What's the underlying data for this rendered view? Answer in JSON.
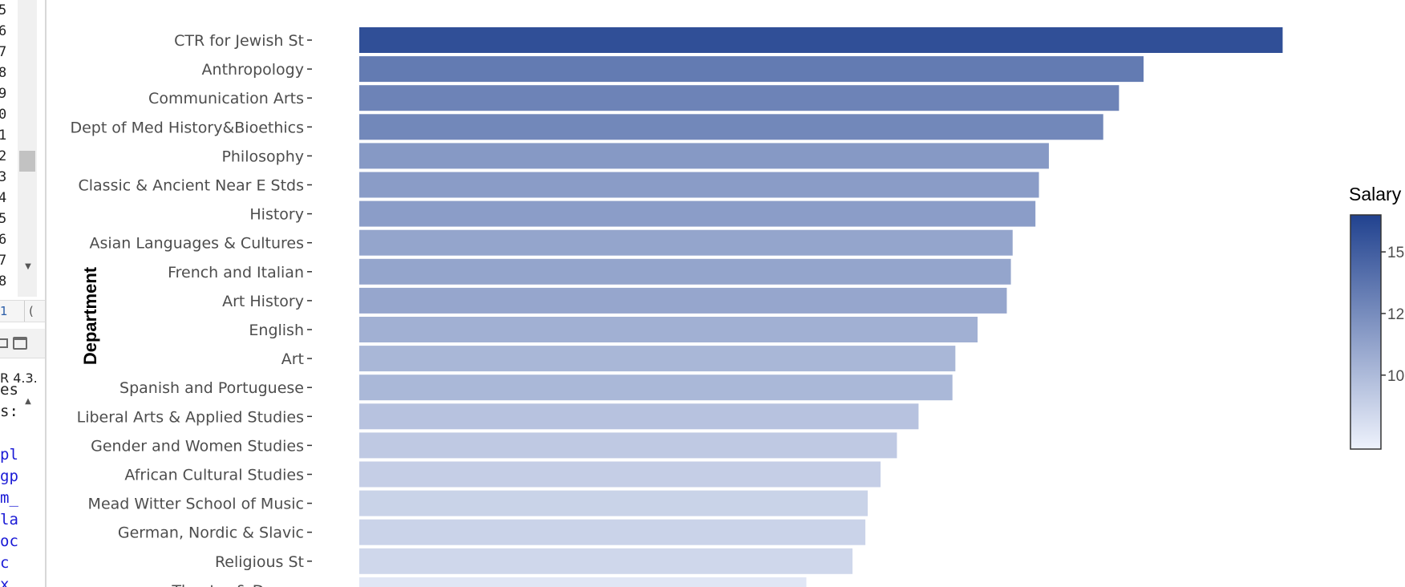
{
  "editor": {
    "line_numbers": [
      "5",
      "6",
      "7",
      "8",
      "9",
      "0",
      "1",
      "2",
      "3",
      "4",
      "5",
      "6",
      "7",
      "8"
    ],
    "status_left": "1",
    "status_right": "("
  },
  "console": {
    "r_version": "R 4.3.",
    "lines": [
      {
        "text": "es",
        "color": "#222222"
      },
      {
        "text": "s:",
        "color": "#222222"
      },
      {
        "text": "",
        "color": "#222222"
      },
      {
        "text": "pl",
        "color": "#1a1ad6"
      },
      {
        "text": "gp",
        "color": "#1a1ad6"
      },
      {
        "text": "m_",
        "color": "#1a1ad6"
      },
      {
        "text": "la",
        "color": "#1a1ad6"
      },
      {
        "text": "oc",
        "color": "#1a1ad6"
      },
      {
        "text": " c",
        "color": "#1a1ad6"
      },
      {
        "text": "x",
        "color": "#1a1ad6"
      }
    ]
  },
  "chart_data": {
    "type": "bar",
    "orientation": "horizontal",
    "title": "",
    "ylabel": "Department",
    "xlim": [
      0,
      160000
    ],
    "categories": [
      "CTR for Jewish St",
      "Anthropology",
      "Communication Arts",
      "Dept of Med History&Bioethics",
      "Philosophy",
      "Classic & Ancient Near E Stds",
      "History",
      "Asian Languages & Cultures",
      "French and Italian",
      "Art History",
      "English",
      "Art",
      "Spanish and Portuguese",
      "Liberal Arts & Applied Studies",
      "Gender and Women Studies",
      "African Cultural Studies",
      "Mead Witter School of Music",
      "German, Nordic & Slavic",
      "Religious St",
      "Theatre & Drama"
    ],
    "values": [
      158000,
      134200,
      130000,
      127300,
      118000,
      116300,
      115700,
      111800,
      111500,
      110800,
      105800,
      102000,
      101500,
      95700,
      92000,
      89200,
      87000,
      86600,
      84400,
      76500
    ],
    "legend": {
      "title": "Salary",
      "position": "right",
      "tick_labels": [
        "15",
        "12",
        "10"
      ],
      "tick_values": [
        150000,
        125000,
        100000
      ],
      "range": [
        70000,
        165000
      ],
      "color_low": "#eef2fc",
      "color_high": "#21428f"
    },
    "grid": false
  }
}
